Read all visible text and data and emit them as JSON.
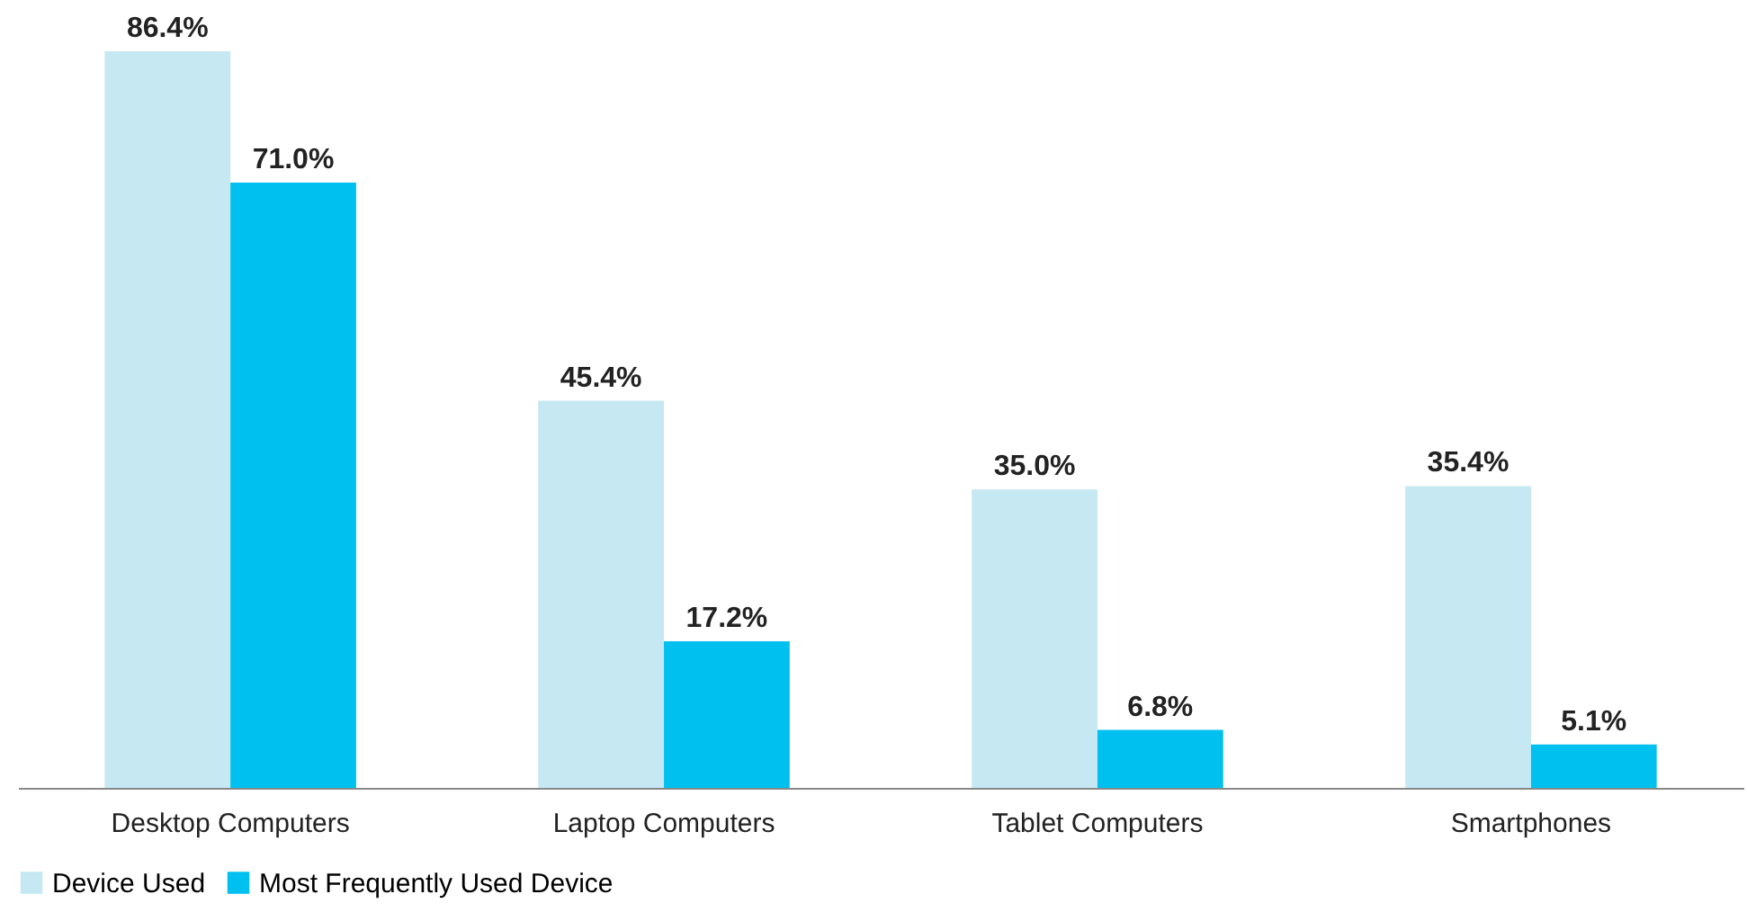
{
  "chart_data": {
    "type": "bar",
    "categories": [
      "Desktop Computers",
      "Laptop Computers",
      "Tablet Computers",
      "Smartphones"
    ],
    "series": [
      {
        "name": "Device Used",
        "color": "#c5e8f3",
        "values": [
          86.4,
          45.4,
          35.0,
          35.4
        ],
        "value_labels": [
          "86.4%",
          "45.4%",
          "35.0%",
          "35.4%"
        ]
      },
      {
        "name": "Most Frequently Used Device",
        "color": "#00c0f0",
        "values": [
          71.0,
          17.2,
          6.8,
          5.1
        ],
        "value_labels": [
          "71.0%",
          "17.2%",
          "6.8%",
          "5.1%"
        ]
      }
    ],
    "legend": "bottom",
    "grid": false
  }
}
